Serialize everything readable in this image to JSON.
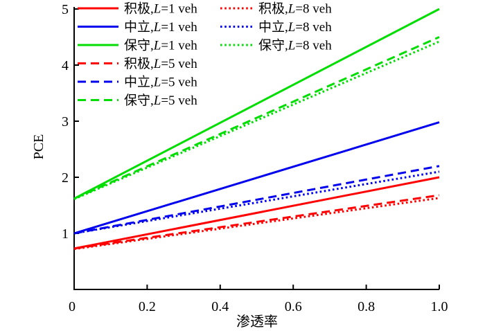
{
  "chart_data": {
    "type": "line",
    "title": "",
    "xlabel": "渗透率",
    "ylabel": "PCE",
    "xlim": [
      0,
      1.0
    ],
    "ylim": [
      0,
      5
    ],
    "xticks": {
      "values": [
        0,
        0.2,
        0.4,
        0.6,
        0.8,
        1.0
      ],
      "labels": [
        "0",
        "0.2",
        "0.4",
        "0.6",
        "0.8",
        "1.0"
      ]
    },
    "yticks": {
      "values": [
        1,
        2,
        3,
        4,
        5
      ],
      "labels": [
        "1",
        "2",
        "3",
        "4",
        "5"
      ]
    },
    "grid": false,
    "legend_position": "upper-left, two columns, no frame",
    "colors": {
      "aggressive": "#ff0000",
      "neutral": "#0000ee",
      "conservative": "#00dd00"
    },
    "x": [
      0,
      1.0
    ],
    "series": [
      {
        "label": "积极,L=1 veh",
        "strategy": "积极",
        "platoon_length_veh": 1,
        "style": "solid",
        "color": "#ff0000",
        "y": [
          0.73,
          2.0
        ]
      },
      {
        "label": "中立,L=1 veh",
        "strategy": "中立",
        "platoon_length_veh": 1,
        "style": "solid",
        "color": "#0000ee",
        "y": [
          1.0,
          2.98
        ]
      },
      {
        "label": "保守,L=1 veh",
        "strategy": "保守",
        "platoon_length_veh": 1,
        "style": "solid",
        "color": "#00dd00",
        "y": [
          1.62,
          5.0
        ]
      },
      {
        "label": "积极,L=5 veh",
        "strategy": "积极",
        "platoon_length_veh": 5,
        "style": "dashed",
        "color": "#ff0000",
        "y": [
          0.73,
          1.68
        ]
      },
      {
        "label": "中立,L=5 veh",
        "strategy": "中立",
        "platoon_length_veh": 5,
        "style": "dashed",
        "color": "#0000ee",
        "y": [
          1.0,
          2.2
        ]
      },
      {
        "label": "保守,L=5 veh",
        "strategy": "保守",
        "platoon_length_veh": 5,
        "style": "dashed",
        "color": "#00dd00",
        "y": [
          1.62,
          4.5
        ]
      },
      {
        "label": "积极,L=8 veh",
        "strategy": "积极",
        "platoon_length_veh": 8,
        "style": "dotted",
        "color": "#ff0000",
        "y": [
          0.72,
          1.63
        ]
      },
      {
        "label": "中立,L=8 veh",
        "strategy": "中立",
        "platoon_length_veh": 8,
        "style": "dotted",
        "color": "#0000ee",
        "y": [
          1.0,
          2.1
        ]
      },
      {
        "label": "保守,L=8 veh",
        "strategy": "保守",
        "platoon_length_veh": 8,
        "style": "dotted",
        "color": "#00dd00",
        "y": [
          1.61,
          4.42
        ]
      }
    ]
  }
}
